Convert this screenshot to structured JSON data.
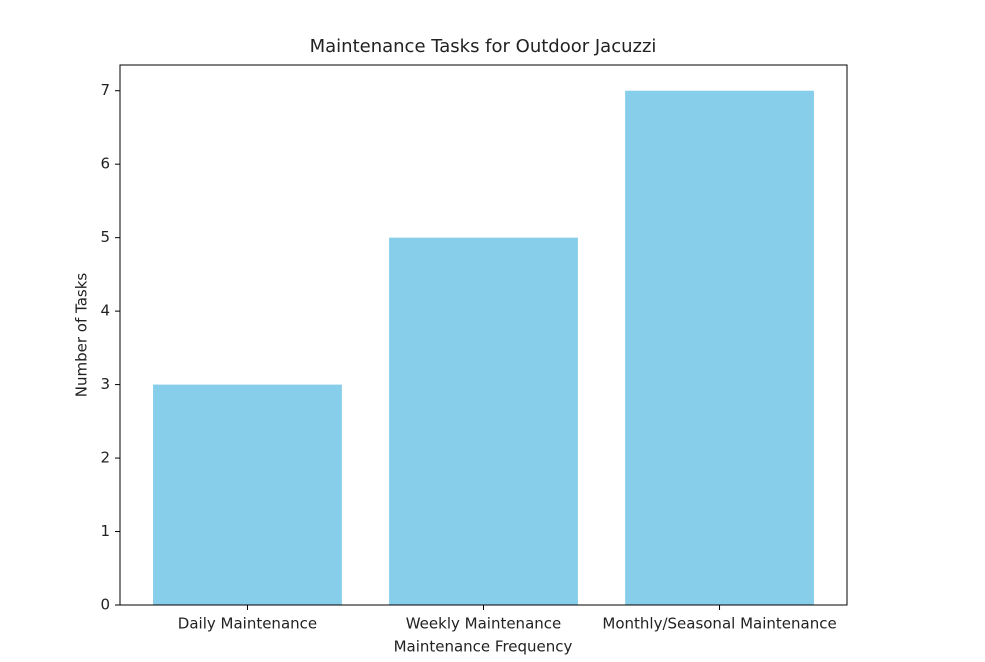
{
  "chart_data": {
    "type": "bar",
    "title": "Maintenance Tasks for Outdoor Jacuzzi",
    "x_label": "Maintenance Frequency",
    "y_label": "Number of Tasks",
    "categories": [
      "Daily Maintenance",
      "Weekly Maintenance",
      "Monthly/Seasonal Maintenance"
    ],
    "values": [
      3,
      5,
      7
    ],
    "color": "#87ceeb",
    "ylim": [
      0,
      7.35
    ],
    "yticks": [
      0,
      1,
      2,
      3,
      4,
      5,
      6,
      7
    ],
    "grid": false
  }
}
